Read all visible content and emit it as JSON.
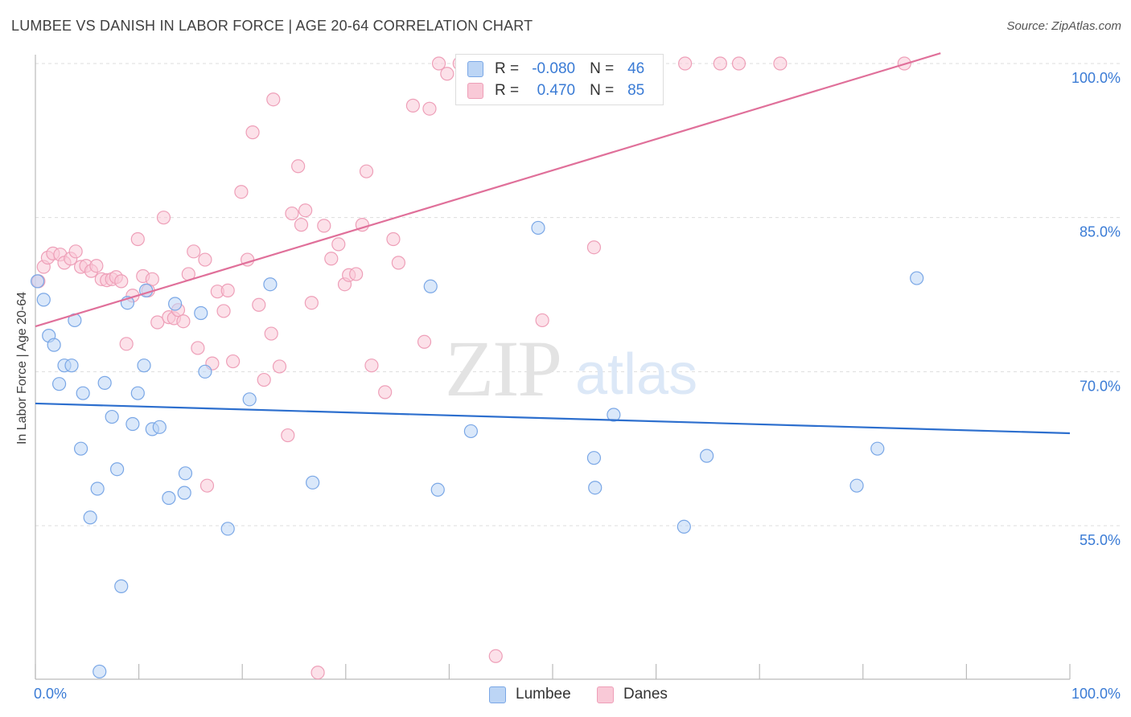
{
  "title": "LUMBEE VS DANISH IN LABOR FORCE | AGE 20-64 CORRELATION CHART",
  "source": "Source: ZipAtlas.com",
  "watermark": {
    "zip": "ZIP",
    "atlas": "atlas"
  },
  "legend": {
    "r_label": "R =",
    "n_label": "N =",
    "lumbee": {
      "r": "-0.080",
      "n": "46"
    },
    "danes": {
      "r": "0.470",
      "n": "85"
    }
  },
  "bottom_legend": [
    "Lumbee",
    "Danes"
  ],
  "colors": {
    "lumbee_fill": "#bcd5f5",
    "lumbee_stroke": "#7aa7e6",
    "lumbee_line": "#2d6fce",
    "danes_fill": "#f9c9d7",
    "danes_stroke": "#ee9fb8",
    "danes_line": "#e0709a",
    "tick_label": "#3a7bd5",
    "grid": "#dddddd"
  },
  "chart_data": {
    "type": "scatter",
    "title": "LUMBEE VS DANISH IN LABOR FORCE | AGE 20-64 CORRELATION CHART",
    "xlabel": "",
    "ylabel": "In Labor Force | Age 20-64",
    "xlim": [
      0,
      100
    ],
    "ylim": [
      40.5,
      101
    ],
    "x_tick_labels": [
      {
        "value": 0,
        "label": "0.0%"
      },
      {
        "value": 100,
        "label": "100.0%"
      }
    ],
    "y_tick_labels": [
      {
        "value": 100,
        "label": "100.0%"
      },
      {
        "value": 85,
        "label": "85.0%"
      },
      {
        "value": 70,
        "label": "70.0%"
      },
      {
        "value": 55,
        "label": "55.0%"
      }
    ],
    "y_gridlines": [
      100,
      85,
      70,
      55
    ],
    "series": [
      {
        "name": "Lumbee",
        "r": -0.08,
        "n": 46,
        "trend": [
          [
            0,
            66.9
          ],
          [
            100,
            64.0
          ]
        ],
        "points": [
          [
            0.2,
            78.8
          ],
          [
            0.8,
            77.0
          ],
          [
            1.3,
            73.5
          ],
          [
            1.8,
            72.6
          ],
          [
            2.3,
            68.8
          ],
          [
            2.8,
            70.6
          ],
          [
            3.5,
            70.6
          ],
          [
            3.8,
            75.0
          ],
          [
            4.4,
            62.5
          ],
          [
            4.6,
            67.9
          ],
          [
            5.3,
            55.8
          ],
          [
            6.0,
            58.6
          ],
          [
            6.7,
            68.9
          ],
          [
            7.4,
            65.6
          ],
          [
            7.9,
            60.5
          ],
          [
            8.3,
            49.1
          ],
          [
            8.9,
            76.7
          ],
          [
            9.4,
            64.9
          ],
          [
            9.9,
            67.9
          ],
          [
            10.5,
            70.6
          ],
          [
            10.7,
            77.9
          ],
          [
            11.3,
            64.4
          ],
          [
            12.0,
            64.6
          ],
          [
            12.9,
            57.7
          ],
          [
            13.5,
            76.6
          ],
          [
            14.4,
            58.2
          ],
          [
            14.5,
            60.1
          ],
          [
            16.0,
            75.7
          ],
          [
            16.4,
            70.0
          ],
          [
            18.6,
            54.7
          ],
          [
            20.7,
            67.3
          ],
          [
            22.7,
            78.5
          ],
          [
            26.8,
            59.2
          ],
          [
            38.2,
            78.3
          ],
          [
            38.9,
            58.5
          ],
          [
            42.1,
            64.2
          ],
          [
            48.6,
            84.0
          ],
          [
            54.0,
            61.6
          ],
          [
            54.1,
            58.7
          ],
          [
            55.9,
            65.8
          ],
          [
            62.7,
            54.9
          ],
          [
            64.9,
            61.8
          ],
          [
            79.4,
            58.9
          ],
          [
            81.4,
            62.5
          ],
          [
            85.2,
            79.1
          ],
          [
            6.2,
            40.8
          ]
        ]
      },
      {
        "name": "Danes",
        "r": 0.47,
        "n": 85,
        "trend": [
          [
            0,
            74.4
          ],
          [
            87.5,
            101
          ]
        ],
        "points": [
          [
            0.3,
            78.8
          ],
          [
            0.8,
            80.2
          ],
          [
            1.2,
            81.1
          ],
          [
            1.7,
            81.5
          ],
          [
            2.4,
            81.4
          ],
          [
            2.8,
            80.6
          ],
          [
            3.4,
            81.0
          ],
          [
            3.9,
            81.7
          ],
          [
            4.4,
            80.2
          ],
          [
            4.9,
            80.3
          ],
          [
            5.4,
            79.8
          ],
          [
            5.9,
            80.3
          ],
          [
            6.4,
            79.0
          ],
          [
            6.9,
            78.9
          ],
          [
            7.4,
            79.0
          ],
          [
            7.8,
            79.2
          ],
          [
            8.3,
            78.8
          ],
          [
            8.8,
            72.7
          ],
          [
            9.4,
            77.4
          ],
          [
            9.9,
            82.9
          ],
          [
            10.4,
            79.3
          ],
          [
            10.9,
            77.9
          ],
          [
            11.3,
            79.0
          ],
          [
            11.8,
            74.8
          ],
          [
            12.4,
            85.0
          ],
          [
            12.9,
            75.3
          ],
          [
            13.4,
            75.2
          ],
          [
            13.8,
            76.0
          ],
          [
            14.3,
            74.9
          ],
          [
            14.8,
            79.5
          ],
          [
            15.3,
            81.7
          ],
          [
            15.7,
            72.3
          ],
          [
            16.4,
            80.9
          ],
          [
            17.1,
            70.8
          ],
          [
            17.6,
            77.8
          ],
          [
            18.2,
            75.9
          ],
          [
            18.6,
            77.9
          ],
          [
            19.1,
            71.0
          ],
          [
            19.9,
            87.5
          ],
          [
            20.5,
            80.9
          ],
          [
            21.0,
            93.3
          ],
          [
            21.6,
            76.5
          ],
          [
            22.1,
            69.2
          ],
          [
            22.8,
            73.7
          ],
          [
            23.0,
            96.5
          ],
          [
            23.6,
            70.5
          ],
          [
            24.4,
            63.8
          ],
          [
            24.8,
            85.4
          ],
          [
            25.4,
            90.0
          ],
          [
            25.7,
            84.3
          ],
          [
            26.1,
            85.7
          ],
          [
            26.7,
            76.7
          ],
          [
            27.3,
            40.7
          ],
          [
            27.9,
            84.2
          ],
          [
            28.6,
            81.0
          ],
          [
            29.3,
            82.4
          ],
          [
            29.9,
            78.5
          ],
          [
            30.3,
            79.4
          ],
          [
            31.0,
            79.5
          ],
          [
            31.6,
            84.3
          ],
          [
            32.0,
            89.5
          ],
          [
            32.5,
            70.6
          ],
          [
            33.8,
            68.0
          ],
          [
            34.6,
            82.9
          ],
          [
            35.1,
            80.6
          ],
          [
            36.5,
            95.9
          ],
          [
            37.6,
            72.9
          ],
          [
            38.1,
            95.6
          ],
          [
            39.0,
            100.0
          ],
          [
            39.8,
            99.0
          ],
          [
            41.0,
            100.0
          ],
          [
            43.5,
            100.0
          ],
          [
            44.5,
            42.3
          ],
          [
            45.2,
            100.0
          ],
          [
            47.5,
            100.0
          ],
          [
            49.0,
            75.0
          ],
          [
            52.8,
            100.0
          ],
          [
            54.0,
            82.1
          ],
          [
            56.0,
            100.0
          ],
          [
            62.8,
            100.0
          ],
          [
            66.2,
            100.0
          ],
          [
            68.0,
            100.0
          ],
          [
            72.0,
            100.0
          ],
          [
            84.0,
            100.0
          ],
          [
            16.6,
            58.9
          ]
        ]
      }
    ]
  }
}
